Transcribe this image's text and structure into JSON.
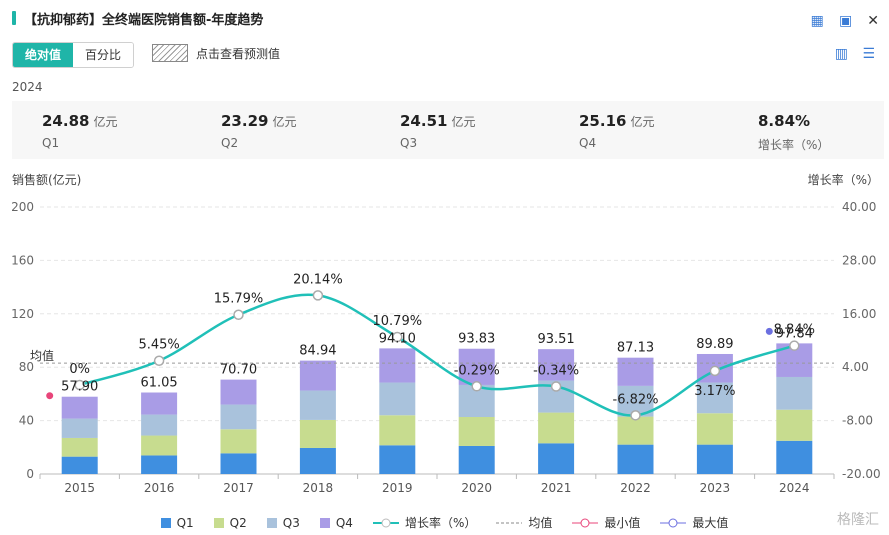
{
  "header": {
    "title": "【抗抑郁药】全终端医院销售额-年度趋势",
    "icons": [
      "excel-icon",
      "image-icon",
      "close-icon"
    ]
  },
  "toolbar": {
    "tab_absolute": "绝对值",
    "tab_percent": "百分比",
    "forecast_label": "点击查看预测值"
  },
  "year_label": "2024",
  "summary": [
    {
      "value": "24.88",
      "unit": "亿元",
      "label": "Q1"
    },
    {
      "value": "23.29",
      "unit": "亿元",
      "label": "Q2"
    },
    {
      "value": "24.51",
      "unit": "亿元",
      "label": "Q3"
    },
    {
      "value": "25.16",
      "unit": "亿元",
      "label": "Q4"
    },
    {
      "value": "8.84%",
      "unit": "",
      "label": "增长率（%）"
    }
  ],
  "chart_data": {
    "type": "bar",
    "stacked": true,
    "categories": [
      "2015",
      "2016",
      "2017",
      "2018",
      "2019",
      "2020",
      "2021",
      "2022",
      "2023",
      "2024"
    ],
    "series": [
      {
        "name": "Q1",
        "color": "#3f8fe0",
        "values": [
          13.0,
          13.9,
          15.5,
          19.5,
          21.5,
          21.0,
          23.0,
          22.0,
          22.0,
          24.88
        ]
      },
      {
        "name": "Q2",
        "color": "#c7dc8f",
        "values": [
          14.0,
          14.9,
          18.0,
          21.0,
          22.5,
          21.7,
          23.0,
          21.0,
          23.5,
          23.29
        ]
      },
      {
        "name": "Q3",
        "color": "#a9c2dc",
        "values": [
          14.5,
          15.7,
          18.5,
          22.0,
          24.5,
          24.0,
          24.0,
          23.0,
          23.0,
          24.51
        ]
      },
      {
        "name": "Q4",
        "color": "#a99ce6",
        "values": [
          16.4,
          16.55,
          18.7,
          22.44,
          25.6,
          27.13,
          23.51,
          21.13,
          21.39,
          25.16
        ]
      }
    ],
    "totals": [
      "57.90",
      "61.05",
      "70.70",
      "84.94",
      "94.10",
      "93.83",
      "93.51",
      "87.13",
      "89.89",
      "97.84"
    ],
    "growth": {
      "name": "增长率（%）",
      "color": "#20c0b8",
      "values": [
        0,
        5.45,
        15.79,
        20.14,
        10.79,
        -0.29,
        -0.34,
        -6.82,
        3.17,
        8.84
      ],
      "labels": [
        "0%",
        "5.45%",
        "15.79%",
        "20.14%",
        "10.79%",
        "-0.29%",
        "-0.34%",
        "-6.82%",
        "3.17%",
        "8.84%"
      ]
    },
    "y_left": {
      "title": "销售额(亿元)",
      "min": 0,
      "max": 200,
      "ticks": [
        "0",
        "40",
        "80",
        "120",
        "160",
        "200"
      ]
    },
    "y_right": {
      "title": "增长率（%）",
      "min": -20,
      "max": 40,
      "ticks": [
        "-20.00",
        "-8.00",
        "4.00",
        "16.00",
        "28.00",
        "40.00"
      ]
    },
    "mean_label": "均值",
    "min_color": "#e8457a",
    "max_color": "#6b6fe0"
  },
  "legend": [
    "Q1",
    "Q2",
    "Q3",
    "Q4",
    "增长率（%）",
    "均值",
    "最小值",
    "最大值"
  ],
  "watermark": "格隆汇"
}
